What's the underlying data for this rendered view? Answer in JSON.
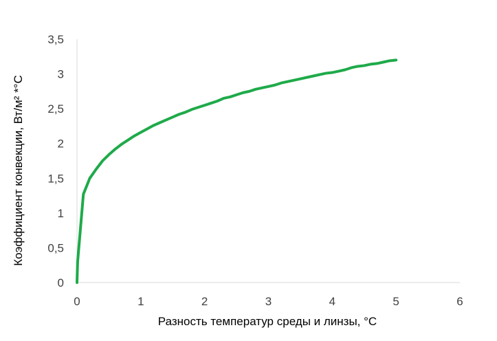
{
  "chart_data": {
    "type": "line",
    "title": "",
    "xlabel": "Разность температур среды и линзы, °C",
    "ylabel": "Коэффициент конвекции, Вт/м² *°C",
    "xlim": [
      0,
      6
    ],
    "ylim": [
      0,
      3.5
    ],
    "x_ticks": [
      0,
      1,
      2,
      3,
      4,
      5,
      6
    ],
    "x_tick_labels": [
      "0",
      "1",
      "2",
      "3",
      "4",
      "5",
      "6"
    ],
    "y_ticks": [
      0,
      0.5,
      1,
      1.5,
      2,
      2.5,
      3,
      3.5
    ],
    "y_tick_labels": [
      "0",
      "0,5",
      "1",
      "1,5",
      "2",
      "2,5",
      "3",
      "3,5"
    ],
    "grid": false,
    "legend": "none",
    "series": [
      {
        "color": "#1faa4a",
        "points": [
          [
            0,
            0
          ],
          [
            0.01,
            0.3
          ],
          [
            0.1,
            1.27
          ],
          [
            0.2,
            1.5
          ],
          [
            0.3,
            1.63
          ],
          [
            0.4,
            1.75
          ],
          [
            0.5,
            1.84
          ],
          [
            0.6,
            1.92
          ],
          [
            0.7,
            1.99
          ],
          [
            0.8,
            2.05
          ],
          [
            0.9,
            2.11
          ],
          [
            1.0,
            2.16
          ],
          [
            1.1,
            2.21
          ],
          [
            1.2,
            2.26
          ],
          [
            1.3,
            2.3
          ],
          [
            1.4,
            2.34
          ],
          [
            1.5,
            2.38
          ],
          [
            1.6,
            2.42
          ],
          [
            1.7,
            2.45
          ],
          [
            1.8,
            2.49
          ],
          [
            1.9,
            2.52
          ],
          [
            2.0,
            2.55
          ],
          [
            2.1,
            2.58
          ],
          [
            2.2,
            2.61
          ],
          [
            2.3,
            2.65
          ],
          [
            2.4,
            2.67
          ],
          [
            2.5,
            2.7
          ],
          [
            2.6,
            2.73
          ],
          [
            2.7,
            2.75
          ],
          [
            2.8,
            2.78
          ],
          [
            2.9,
            2.8
          ],
          [
            3.0,
            2.82
          ],
          [
            3.1,
            2.84
          ],
          [
            3.2,
            2.87
          ],
          [
            3.3,
            2.89
          ],
          [
            3.4,
            2.91
          ],
          [
            3.5,
            2.93
          ],
          [
            3.6,
            2.95
          ],
          [
            3.7,
            2.97
          ],
          [
            3.8,
            2.99
          ],
          [
            3.9,
            3.01
          ],
          [
            4.0,
            3.02
          ],
          [
            4.1,
            3.04
          ],
          [
            4.2,
            3.06
          ],
          [
            4.3,
            3.09
          ],
          [
            4.4,
            3.11
          ],
          [
            4.5,
            3.12
          ],
          [
            4.6,
            3.14
          ],
          [
            4.7,
            3.15
          ],
          [
            4.8,
            3.17
          ],
          [
            4.9,
            3.19
          ],
          [
            5.0,
            3.2
          ]
        ]
      }
    ]
  }
}
